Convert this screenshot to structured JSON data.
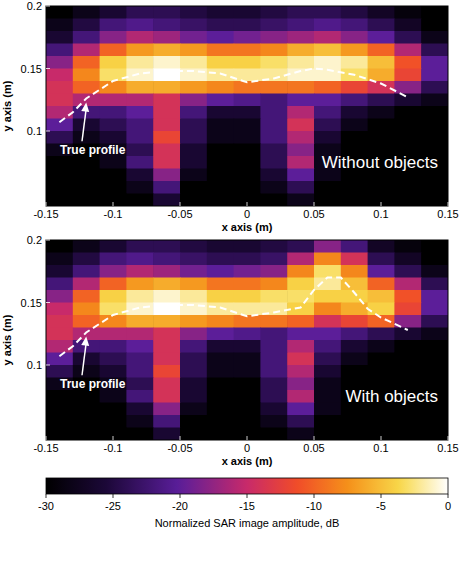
{
  "chart_data": [
    {
      "type": "heatmap",
      "title": "Without objects",
      "x_label": "x axis (m)",
      "y_label": "y axis (m)",
      "xlim": [
        -0.15,
        0.15
      ],
      "ylim": [
        0.04,
        0.2
      ],
      "xticks": [
        -0.15,
        -0.1,
        -0.05,
        0,
        0.05,
        0.1,
        0.15
      ],
      "yticks": [
        0.1,
        0.15,
        0.2
      ],
      "x": [
        -0.14,
        -0.12,
        -0.1,
        -0.08,
        -0.06,
        -0.04,
        -0.02,
        0,
        0.02,
        0.04,
        0.06,
        0.08,
        0.1,
        0.12,
        0.14
      ],
      "y": [
        0.195,
        0.185,
        0.175,
        0.165,
        0.155,
        0.145,
        0.135,
        0.125,
        0.115,
        0.105,
        0.095,
        0.085,
        0.075,
        0.065,
        0.055,
        0.045
      ],
      "values": [
        [
          -30,
          -28,
          -26,
          -24,
          -24,
          -25,
          -26,
          -26,
          -25,
          -24,
          -24,
          -25,
          -27,
          -29,
          -30
        ],
        [
          -28,
          -25,
          -22,
          -21,
          -22,
          -23,
          -24,
          -24,
          -23,
          -22,
          -21,
          -22,
          -24,
          -27,
          -30
        ],
        [
          -26,
          -22,
          -18,
          -16,
          -17,
          -19,
          -20,
          -19,
          -18,
          -17,
          -16,
          -18,
          -20,
          -24,
          -28
        ],
        [
          -22,
          -16,
          -10,
          -7,
          -6,
          -7,
          -9,
          -9,
          -8,
          -6,
          -5,
          -7,
          -10,
          -16,
          -24
        ],
        [
          -18,
          -10,
          -4,
          -2,
          -1,
          -2,
          -4,
          -4,
          -3,
          -2,
          -1,
          -2,
          -5,
          -11,
          -20
        ],
        [
          -15,
          -8,
          -3,
          -1,
          0,
          -1,
          -2,
          -2,
          -2,
          -1,
          -1,
          -3,
          -6,
          -12,
          -20
        ],
        [
          -14,
          -10,
          -8,
          -6,
          -6,
          -7,
          -8,
          -9,
          -9,
          -9,
          -10,
          -12,
          -14,
          -18,
          -24
        ],
        [
          -14,
          -16,
          -16,
          -16,
          -14,
          -18,
          -20,
          -21,
          -22,
          -20,
          -20,
          -22,
          -24,
          -26,
          -28
        ],
        [
          -16,
          -22,
          -22,
          -20,
          -14,
          -22,
          -26,
          -26,
          -22,
          -16,
          -22,
          -26,
          -28,
          -30,
          -30
        ],
        [
          -20,
          -26,
          -24,
          -22,
          -14,
          -24,
          -28,
          -28,
          -22,
          -14,
          -24,
          -28,
          -30,
          -30,
          -30
        ],
        [
          -24,
          -28,
          -26,
          -22,
          -12,
          -24,
          -28,
          -28,
          -22,
          -16,
          -26,
          -30,
          -30,
          -30,
          -30
        ],
        [
          -28,
          -30,
          -28,
          -24,
          -14,
          -26,
          -30,
          -30,
          -24,
          -18,
          -28,
          -30,
          -30,
          -30,
          -30
        ],
        [
          -30,
          -30,
          -28,
          -22,
          -14,
          -26,
          -30,
          -30,
          -24,
          -16,
          -28,
          -30,
          -30,
          -30,
          -30
        ],
        [
          -30,
          -30,
          -30,
          -26,
          -18,
          -28,
          -30,
          -30,
          -26,
          -20,
          -28,
          -30,
          -30,
          -30,
          -30
        ],
        [
          -30,
          -30,
          -30,
          -28,
          -22,
          -30,
          -30,
          -30,
          -28,
          -24,
          -30,
          -30,
          -30,
          -30,
          -30
        ],
        [
          -30,
          -30,
          -30,
          -30,
          -26,
          -30,
          -30,
          -30,
          -30,
          -28,
          -30,
          -30,
          -30,
          -30,
          -30
        ]
      ],
      "profile": {
        "label": "True profile",
        "color": "#ffffff",
        "line_style": "dashed",
        "x": [
          -0.14,
          -0.13,
          -0.12,
          -0.1,
          -0.08,
          -0.06,
          -0.04,
          -0.02,
          0,
          0.02,
          0.04,
          0.05,
          0.06,
          0.08,
          0.1,
          0.12
        ],
        "y": [
          0.107,
          0.115,
          0.126,
          0.14,
          0.146,
          0.148,
          0.148,
          0.146,
          0.139,
          0.142,
          0.148,
          0.15,
          0.149,
          0.145,
          0.138,
          0.127
        ]
      }
    },
    {
      "type": "heatmap",
      "title": "With objects",
      "x_label": "x axis (m)",
      "y_label": "y axis (m)",
      "xlim": [
        -0.15,
        0.15
      ],
      "ylim": [
        0.04,
        0.2
      ],
      "xticks": [
        -0.15,
        -0.1,
        -0.05,
        0,
        0.05,
        0.1,
        0.15
      ],
      "yticks": [
        0.1,
        0.15,
        0.2
      ],
      "x": [
        -0.14,
        -0.12,
        -0.1,
        -0.08,
        -0.06,
        -0.04,
        -0.02,
        0,
        0.02,
        0.04,
        0.06,
        0.08,
        0.1,
        0.12,
        0.14
      ],
      "y": [
        0.195,
        0.185,
        0.175,
        0.165,
        0.155,
        0.145,
        0.135,
        0.125,
        0.115,
        0.105,
        0.095,
        0.085,
        0.075,
        0.065,
        0.055,
        0.045
      ],
      "values": [
        [
          -30,
          -28,
          -26,
          -24,
          -24,
          -25,
          -26,
          -26,
          -25,
          -24,
          -18,
          -22,
          -27,
          -29,
          -30
        ],
        [
          -28,
          -25,
          -22,
          -21,
          -22,
          -23,
          -24,
          -24,
          -23,
          -16,
          -8,
          -14,
          -24,
          -27,
          -30
        ],
        [
          -26,
          -22,
          -18,
          -16,
          -17,
          -19,
          -20,
          -19,
          -18,
          -8,
          -3,
          -8,
          -20,
          -24,
          -28
        ],
        [
          -22,
          -16,
          -10,
          -7,
          -6,
          -7,
          -9,
          -9,
          -8,
          -4,
          -2,
          -5,
          -10,
          -16,
          -24
        ],
        [
          -18,
          -10,
          -4,
          -2,
          -1,
          -2,
          -4,
          -4,
          -3,
          -3,
          -4,
          -4,
          -5,
          -11,
          -20
        ],
        [
          -15,
          -8,
          -3,
          -1,
          0,
          -1,
          -2,
          -2,
          -2,
          -4,
          -8,
          -6,
          -4,
          -12,
          -20
        ],
        [
          -14,
          -10,
          -8,
          -6,
          -6,
          -7,
          -8,
          -9,
          -9,
          -10,
          -14,
          -12,
          -10,
          -18,
          -24
        ],
        [
          -14,
          -16,
          -16,
          -16,
          -14,
          -18,
          -20,
          -21,
          -22,
          -20,
          -20,
          -22,
          -24,
          -26,
          -28
        ],
        [
          -16,
          -22,
          -22,
          -20,
          -14,
          -22,
          -26,
          -26,
          -22,
          -16,
          -22,
          -26,
          -28,
          -30,
          -30
        ],
        [
          -20,
          -26,
          -24,
          -22,
          -14,
          -24,
          -28,
          -28,
          -22,
          -14,
          -24,
          -28,
          -30,
          -30,
          -30
        ],
        [
          -24,
          -28,
          -26,
          -22,
          -12,
          -24,
          -28,
          -28,
          -22,
          -16,
          -26,
          -30,
          -30,
          -30,
          -30
        ],
        [
          -28,
          -30,
          -28,
          -24,
          -14,
          -26,
          -30,
          -30,
          -24,
          -18,
          -28,
          -30,
          -30,
          -30,
          -30
        ],
        [
          -30,
          -30,
          -28,
          -22,
          -14,
          -26,
          -30,
          -30,
          -24,
          -16,
          -28,
          -30,
          -30,
          -30,
          -30
        ],
        [
          -30,
          -30,
          -30,
          -26,
          -18,
          -28,
          -30,
          -30,
          -26,
          -20,
          -28,
          -30,
          -30,
          -30,
          -30
        ],
        [
          -30,
          -30,
          -30,
          -28,
          -22,
          -30,
          -30,
          -30,
          -28,
          -24,
          -30,
          -30,
          -30,
          -30,
          -30
        ],
        [
          -30,
          -30,
          -30,
          -30,
          -26,
          -30,
          -30,
          -30,
          -30,
          -28,
          -30,
          -30,
          -30,
          -30,
          -30
        ]
      ],
      "profile": {
        "label": "True profile",
        "color": "#ffffff",
        "line_style": "dashed",
        "x": [
          -0.14,
          -0.13,
          -0.12,
          -0.1,
          -0.08,
          -0.06,
          -0.04,
          -0.02,
          0,
          0.02,
          0.04,
          0.05,
          0.06,
          0.07,
          0.08,
          0.09,
          0.1,
          0.12
        ],
        "y": [
          0.107,
          0.115,
          0.126,
          0.14,
          0.146,
          0.148,
          0.148,
          0.146,
          0.139,
          0.142,
          0.146,
          0.16,
          0.17,
          0.17,
          0.158,
          0.145,
          0.138,
          0.128
        ]
      },
      "color_range": [
        -30,
        0
      ],
      "color_ticks": [
        -30,
        -25,
        -20,
        -15,
        -10,
        -5,
        0
      ],
      "color_label": "Normalized SAR image amplitude, dB"
    }
  ]
}
